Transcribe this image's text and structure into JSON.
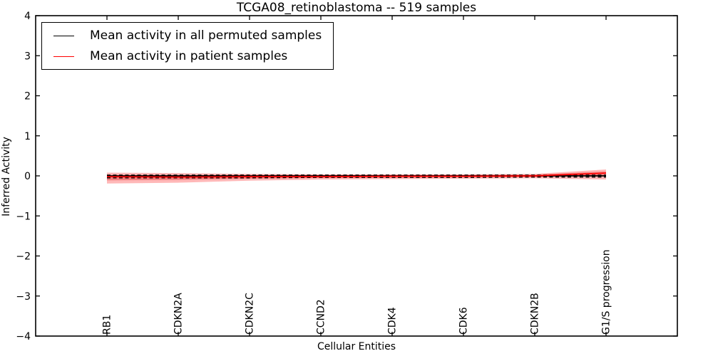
{
  "legend": {
    "items": [
      {
        "label": "Mean activity in all permuted samples",
        "color": "#000000"
      },
      {
        "label": "Mean activity in patient samples",
        "color": "#ff0000"
      }
    ]
  },
  "chart_data": {
    "type": "line",
    "title": "TCGA08_retinoblastoma -- 519 samples",
    "xlabel": "Cellular Entities",
    "ylabel": "Inferred Activity",
    "categories": [
      "RB1",
      "CDKN2A",
      "CDKN2C",
      "CCND2",
      "CDK4",
      "CDK6",
      "CDKN2B",
      "G1/S progression"
    ],
    "x": [
      1,
      2,
      3,
      4,
      5,
      6,
      7,
      8
    ],
    "xlim": [
      0,
      9
    ],
    "ylim": [
      -4,
      4
    ],
    "yticks": [
      -4,
      -3,
      -2,
      -1,
      0,
      1,
      2,
      3,
      4
    ],
    "grid": false,
    "legend_position": "upper left",
    "axis_color": "#000000",
    "series": [
      {
        "name": "Mean activity in all permuted samples",
        "color": "#000000",
        "style": "solid",
        "width": 1.8,
        "values": [
          0.0,
          0.0,
          0.0,
          0.0,
          0.0,
          0.0,
          0.0,
          0.0
        ]
      },
      {
        "name": "permuted-range-dashed-upper",
        "color": "#000000",
        "style": "dashed",
        "width": 1.3,
        "values": [
          0.02,
          0.02,
          0.02,
          0.02,
          0.02,
          0.02,
          0.02,
          0.02
        ]
      },
      {
        "name": "permuted-range-dashed-lower",
        "color": "#000000",
        "style": "dashed",
        "width": 1.3,
        "values": [
          -0.05,
          -0.05,
          -0.05,
          -0.04,
          -0.04,
          -0.04,
          -0.03,
          -0.03
        ]
      },
      {
        "name": "Mean activity in patient samples",
        "color": "#ff0000",
        "style": "solid",
        "width": 1.7,
        "values": [
          -0.02,
          -0.03,
          -0.02,
          -0.02,
          -0.01,
          -0.01,
          0.0,
          0.07
        ]
      }
    ],
    "bands": [
      {
        "name": "patient-band-outer",
        "color": "#ff0000",
        "opacity": 0.28,
        "upper": [
          0.08,
          0.07,
          0.05,
          0.04,
          0.04,
          0.04,
          0.05,
          0.16
        ],
        "lower": [
          -0.19,
          -0.17,
          -0.12,
          -0.09,
          -0.08,
          -0.07,
          -0.06,
          -0.09
        ]
      },
      {
        "name": "patient-band-inner",
        "color": "#dd1c1c",
        "opacity": 0.38,
        "upper": [
          0.02,
          0.02,
          0.02,
          0.02,
          0.02,
          0.02,
          0.03,
          0.11
        ],
        "lower": [
          -0.11,
          -0.1,
          -0.07,
          -0.05,
          -0.05,
          -0.04,
          -0.03,
          0.02
        ]
      }
    ]
  }
}
